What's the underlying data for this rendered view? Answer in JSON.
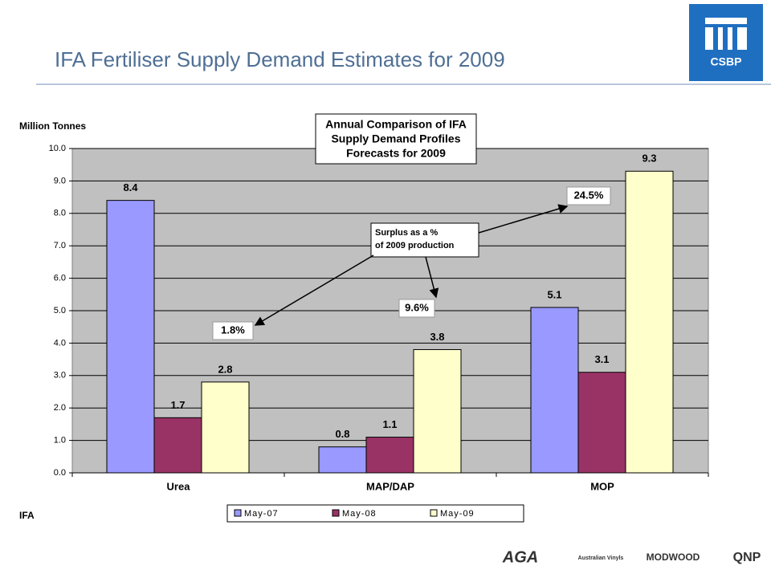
{
  "slide": {
    "title": "IFA Fertiliser Supply Demand Estimates for 2009",
    "logo": "CSBP",
    "footer_logos": [
      "AGA",
      "Australian Vinyls",
      "MODWOOD",
      "QNP"
    ]
  },
  "chart_data": {
    "type": "bar",
    "title": [
      "Annual Comparison of IFA",
      "Supply Demand Profiles",
      "Forecasts for 2009"
    ],
    "ylabel": "Million Tonnes",
    "source": "IFA",
    "categories": [
      "Urea",
      "MAP/DAP",
      "MOP"
    ],
    "series": [
      {
        "name": "May-07",
        "color": "#9999ff",
        "values": [
          8.4,
          0.8,
          5.1
        ]
      },
      {
        "name": "May-08",
        "color": "#993366",
        "values": [
          1.7,
          1.1,
          3.1
        ]
      },
      {
        "name": "May-09",
        "color": "#ffffcc",
        "values": [
          2.8,
          3.8,
          9.3
        ]
      }
    ],
    "ylim": [
      0,
      10
    ],
    "yticks": [
      {
        "value": 0,
        "label": "0.0"
      },
      {
        "value": 1,
        "label": "1.0"
      },
      {
        "value": 2,
        "label": "2.0"
      },
      {
        "value": 3,
        "label": "3.0"
      },
      {
        "value": 4,
        "label": "4.0"
      },
      {
        "value": 5,
        "label": "5.0"
      },
      {
        "value": 6,
        "label": "6.0"
      },
      {
        "value": 7,
        "label": "7.0"
      },
      {
        "value": 8,
        "label": "8.0"
      },
      {
        "value": 9,
        "label": "9.0"
      },
      {
        "value": 10,
        "label": "10.0"
      }
    ],
    "grid": true,
    "legend": "bottom",
    "callout": [
      "Surplus as a %",
      "of 2009 production"
    ],
    "annotations": [
      "1.8%",
      "9.6%",
      "24.5%"
    ]
  }
}
